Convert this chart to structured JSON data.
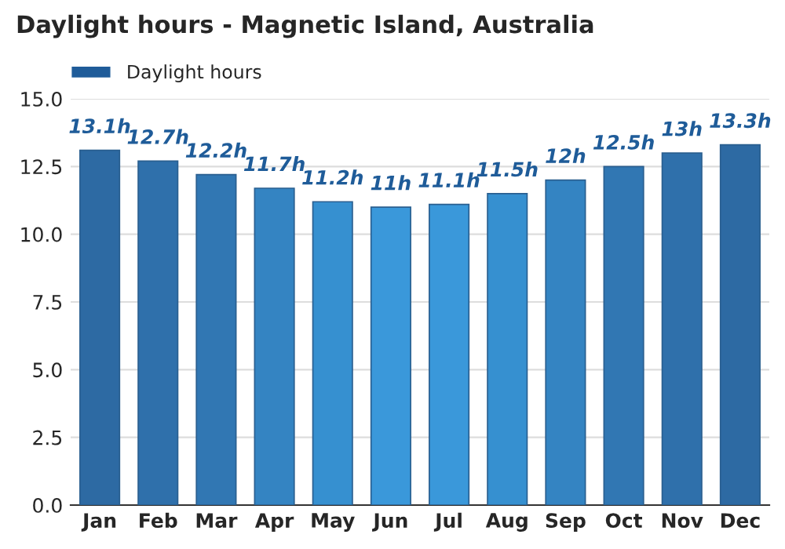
{
  "chart_data": {
    "type": "bar",
    "title": "Daylight hours - Magnetic Island, Australia",
    "categories": [
      "Jan",
      "Feb",
      "Mar",
      "Apr",
      "May",
      "Jun",
      "Jul",
      "Aug",
      "Sep",
      "Oct",
      "Nov",
      "Dec"
    ],
    "series": [
      {
        "name": "Daylight hours",
        "color": "#1f5c99",
        "values": [
          13.1,
          12.7,
          12.2,
          11.7,
          11.2,
          11,
          11.1,
          11.5,
          12,
          12.5,
          13,
          13.3
        ],
        "colors": [
          "#2d6aa3",
          "#2f70ab",
          "#3177b3",
          "#3484c2",
          "#3690d0",
          "#3a98da",
          "#3a98da",
          "#3690d0",
          "#3484c2",
          "#3177b3",
          "#2f70ab",
          "#2d6aa3"
        ],
        "value_labels": [
          "13.1h",
          "12.7h",
          "12.2h",
          "11.7h",
          "11.2h",
          "11h",
          "11.1h",
          "11.5h",
          "12h",
          "12.5h",
          "13h",
          "13.3h"
        ]
      }
    ],
    "ylim": [
      0,
      15
    ],
    "yticks": [
      {
        "value": 0,
        "label": "0.0"
      },
      {
        "value": 2.5,
        "label": "2.5"
      },
      {
        "value": 5,
        "label": "5.0"
      },
      {
        "value": 7.5,
        "label": "7.5"
      },
      {
        "value": 10,
        "label": "10.0"
      },
      {
        "value": 12.5,
        "label": "12.5"
      },
      {
        "value": 15,
        "label": "15.0"
      }
    ],
    "grid": "y",
    "legend": "top left"
  }
}
